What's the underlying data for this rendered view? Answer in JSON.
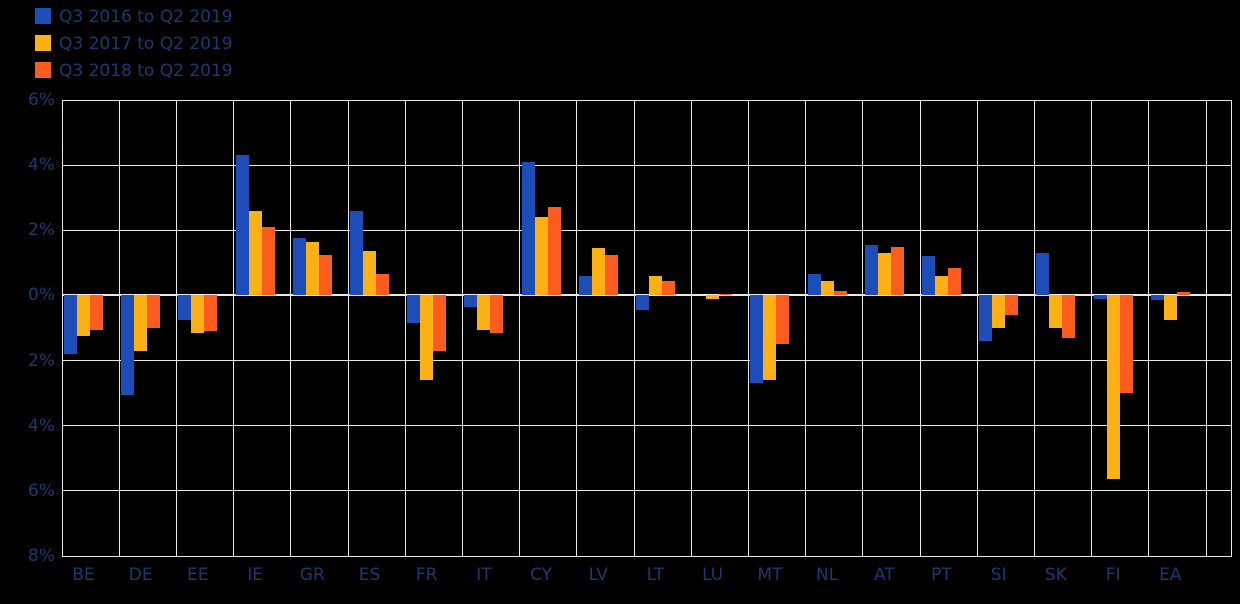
{
  "chart_data": {
    "type": "bar",
    "title": "",
    "xlabel": "",
    "ylabel": "",
    "categories": [
      "BE",
      "DE",
      "EE",
      "IE",
      "GR",
      "ES",
      "FR",
      "IT",
      "CY",
      "LV",
      "LT",
      "LU",
      "MT",
      "NL",
      "AT",
      "PT",
      "SI",
      "SK",
      "FI",
      "EA"
    ],
    "series": [
      {
        "name": "Q3 2016 to Q2 2019",
        "color": "#1d4db8",
        "values": [
          -1.8,
          -3.05,
          -0.75,
          4.3,
          1.75,
          2.6,
          -0.85,
          -0.35,
          4.1,
          0.6,
          -0.45,
          0.0,
          -2.7,
          0.65,
          1.55,
          1.2,
          -1.4,
          1.3,
          -0.1,
          -0.15
        ]
      },
      {
        "name": "Q3 2017 to Q2 2019",
        "color": "#fbb116",
        "values": [
          -1.25,
          -1.7,
          -1.15,
          2.6,
          1.65,
          1.35,
          -2.6,
          -1.05,
          2.4,
          1.45,
          0.6,
          -0.1,
          -2.6,
          0.45,
          1.3,
          0.6,
          -1.0,
          -1.0,
          -5.65,
          -0.75
        ]
      },
      {
        "name": "Q3 2018 to Q2 2019",
        "color": "#fc5d1e",
        "values": [
          -1.05,
          -1.0,
          -1.1,
          2.1,
          1.25,
          0.65,
          -1.7,
          -1.15,
          2.7,
          1.25,
          0.45,
          0.05,
          -1.5,
          0.15,
          1.5,
          0.85,
          -0.6,
          -1.3,
          -3.0,
          0.1
        ]
      }
    ],
    "ylim": [
      -8,
      6
    ],
    "yticks": [
      {
        "value": 6,
        "label": "6%"
      },
      {
        "value": 4,
        "label": "4%"
      },
      {
        "value": 2,
        "label": "2%"
      },
      {
        "value": 0,
        "label": "0%"
      },
      {
        "value": -2,
        "label": "2%"
      },
      {
        "value": -4,
        "label": "4%"
      },
      {
        "value": -6,
        "label": "6%"
      },
      {
        "value": -8,
        "label": "8%"
      }
    ],
    "grid": true,
    "legend_position": "top-left",
    "colors": {
      "background": "#000000",
      "gridline": "#e9e9e9",
      "text": "#1a3a6d"
    }
  }
}
